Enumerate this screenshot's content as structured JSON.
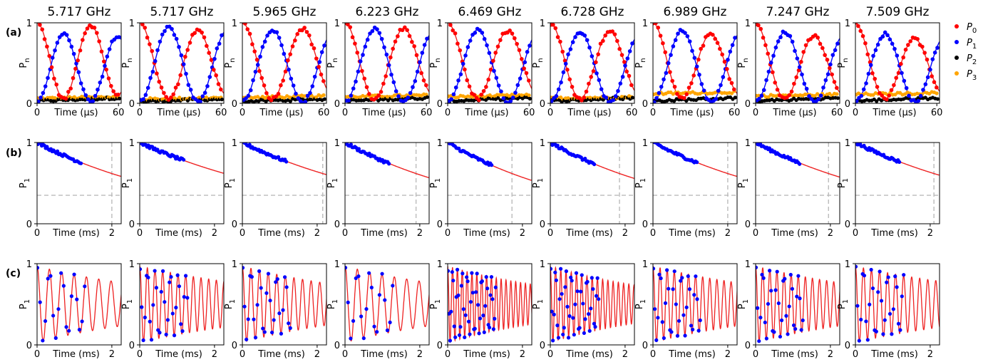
{
  "figure": {
    "columns": [
      "5.717 GHz",
      "5.717 GHz",
      "5.965 GHz",
      "6.223 GHz",
      "6.469 GHz",
      "6.728 GHz",
      "6.989 GHz",
      "7.247 GHz",
      "7.509 GHz"
    ],
    "row_labels": [
      "(a)",
      "(b)",
      "(c)"
    ],
    "legend": {
      "placement": "right",
      "entries": [
        {
          "label": "P0",
          "base": "P",
          "sub": "0",
          "color": "#ff0000"
        },
        {
          "label": "P1",
          "base": "P",
          "sub": "1",
          "color": "#0000ff"
        },
        {
          "label": "P2",
          "base": "P",
          "sub": "2",
          "color": "#000000"
        },
        {
          "label": "P3",
          "base": "P",
          "sub": "3",
          "color": "#ffa500"
        }
      ]
    },
    "colors": {
      "fit": "#ee2222",
      "guide": "#bbbbbb"
    }
  },
  "chart_data": [
    {
      "row": "(a)",
      "type": "scatter",
      "ylabel": "P_n",
      "xlabel": "Time (μs)",
      "xlim": [
        0,
        62
      ],
      "ylim": [
        0,
        1
      ],
      "xticks": [
        "0",
        "60"
      ],
      "yticks": [
        "0",
        "1"
      ],
      "series": [
        {
          "name": "P0",
          "color": "#ff0000",
          "periods_us": [
            39.5,
            43.0,
            44.5,
            43.5,
            44.5,
            44.0,
            43.0,
            43.5,
            44.0
          ],
          "peak": [
            0.96,
            0.86,
            0.9,
            0.9,
            0.86,
            0.85,
            0.8,
            0.76,
            0.72
          ],
          "start": [
            1,
            1,
            1,
            1,
            1,
            1,
            1,
            1,
            1
          ]
        },
        {
          "name": "P1",
          "color": "#0000ff",
          "peak": [
            0.88,
            0.96,
            0.93,
            0.94,
            0.93,
            0.91,
            0.92,
            0.9,
            0.88
          ]
        },
        {
          "name": "P2",
          "color": "#000000",
          "level": [
            0.05,
            0.04,
            0.04,
            0.05,
            0.05,
            0.05,
            0.05,
            0.05,
            0.05
          ]
        },
        {
          "name": "P3",
          "color": "#ffa500",
          "level": [
            0.06,
            0.05,
            0.07,
            0.08,
            0.08,
            0.06,
            0.12,
            0.09,
            0.11
          ]
        }
      ]
    },
    {
      "row": "(b)",
      "type": "scatter",
      "ylabel": "P_1",
      "xlabel": "Time (ms)",
      "xlim": [
        0,
        2.25
      ],
      "ylim": [
        0,
        1
      ],
      "xticks": [
        "0",
        "2"
      ],
      "yticks": [
        "0",
        "1"
      ],
      "T1_ms": [
        2.0,
        2.27,
        2.15,
        1.9,
        1.72,
        1.85,
        2.0,
        1.95,
        2.1
      ],
      "data_xmax_ms": 1.2,
      "asymptote": 0.35,
      "e_fold_level": 0.368
    },
    {
      "row": "(c)",
      "type": "scatter",
      "ylabel": "P_1",
      "xlabel": "Time (ms)",
      "xlim": [
        0,
        2.25
      ],
      "ylim": [
        0,
        1
      ],
      "xticks": [
        "0",
        "2"
      ],
      "yticks": [
        "0",
        "1"
      ],
      "periods_ms": [
        0.33,
        0.205,
        0.23,
        0.33,
        0.13,
        0.14,
        0.19,
        0.19,
        0.215
      ],
      "data_xmax_ms": 1.3,
      "T2_ms": [
        4.0,
        4.5,
        3.8,
        4.0,
        3.5,
        3.3,
        4.0,
        4.0,
        4.5
      ]
    }
  ]
}
